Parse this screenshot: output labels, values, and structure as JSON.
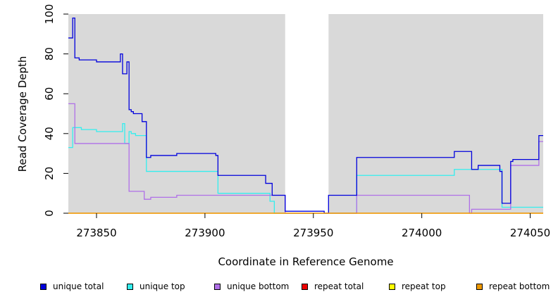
{
  "chart_data": {
    "type": "line",
    "title": "",
    "xlabel": "Coordinate in Reference Genome",
    "ylabel": "Read Coverage Depth",
    "xlim": [
      273837,
      274056
    ],
    "ylim": [
      0,
      100
    ],
    "x_ticks": [
      273850,
      273900,
      273950,
      274000,
      274050
    ],
    "y_ticks": [
      0,
      20,
      40,
      60,
      80,
      100
    ],
    "background_color": "#d9d9d9",
    "gap_region": [
      273937,
      273957
    ],
    "legend_placement": "bottom",
    "series": [
      {
        "name": "unique total",
        "color": "#0000dd",
        "x": [
          273837,
          273839,
          273840,
          273842,
          273850,
          273861,
          273862,
          273864,
          273865,
          273866,
          273867,
          273871,
          273873,
          273875,
          273887,
          273905,
          273906,
          273928,
          273931,
          273937,
          273954,
          273955,
          273957,
          273970,
          274015,
          274023,
          274026,
          274036,
          274037,
          274041,
          274042,
          274054,
          274056
        ],
        "y": [
          88,
          98,
          78,
          77,
          76,
          80,
          70,
          76,
          52,
          51,
          50,
          46,
          28,
          29,
          30,
          29,
          19,
          15,
          9,
          1,
          1,
          0,
          9,
          28,
          31,
          22,
          24,
          21,
          5,
          26,
          27,
          39,
          39
        ]
      },
      {
        "name": "unique top",
        "color": "#33eeee",
        "x": [
          273837,
          273839,
          273843,
          273850,
          273862,
          273863,
          273865,
          273866,
          273868,
          273873,
          273906,
          273930,
          273932,
          273957,
          273970,
          274015,
          274037,
          274041,
          274056
        ],
        "y": [
          33,
          43,
          42,
          41,
          45,
          35,
          41,
          40,
          39,
          21,
          10,
          6,
          0,
          0,
          19,
          22,
          3,
          3,
          3
        ]
      },
      {
        "name": "unique bottom",
        "color": "#b070e8",
        "x": [
          273837,
          273840,
          273865,
          273872,
          273875,
          273887,
          273937,
          273970,
          274022,
          274023,
          274041,
          274042,
          274054,
          274056
        ],
        "y": [
          55,
          35,
          11,
          7,
          8,
          9,
          0,
          9,
          0,
          2,
          24,
          24,
          36,
          36
        ]
      },
      {
        "name": "repeat total",
        "color": "#ee0000",
        "x": [
          273837,
          274056
        ],
        "y": [
          0,
          0
        ]
      },
      {
        "name": "repeat top",
        "color": "#ffff00",
        "x": [
          273837,
          274056
        ],
        "y": [
          0,
          0
        ]
      },
      {
        "name": "repeat bottom",
        "color": "#ee9900",
        "x": [
          273837,
          274056
        ],
        "y": [
          0,
          0
        ]
      }
    ]
  }
}
